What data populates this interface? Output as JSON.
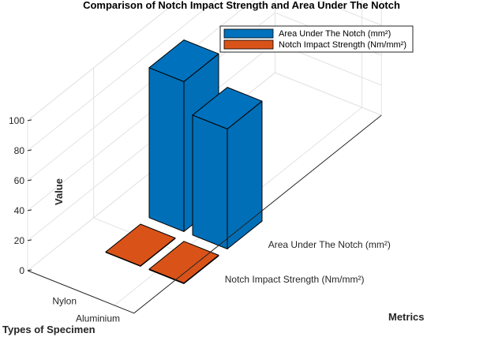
{
  "chart_data": {
    "type": "bar3",
    "title": "Comparison of Notch Impact Strength and Area Under The Notch",
    "zlabel": "Value",
    "xlabel": "Metrics",
    "ylabel": "Types of Specimen",
    "x_categories": [
      "Notch Impact Strength (Nm/mm²)",
      "Area Under The Notch (mm²)"
    ],
    "y_categories": [
      "Aluminium",
      "Nylon"
    ],
    "zlim": [
      0,
      100
    ],
    "zticks": [
      0,
      20,
      40,
      60,
      80,
      100
    ],
    "grid": true,
    "legend_position": "top-right",
    "series": [
      {
        "name": "Area Under The Notch (mm²)",
        "color": "#0072BD",
        "values": [
          80,
          100
        ]
      },
      {
        "name": "Notch Impact Strength (Nm/mm²)",
        "color": "#D95319",
        "values": [
          0.4,
          0.3
        ]
      }
    ]
  }
}
